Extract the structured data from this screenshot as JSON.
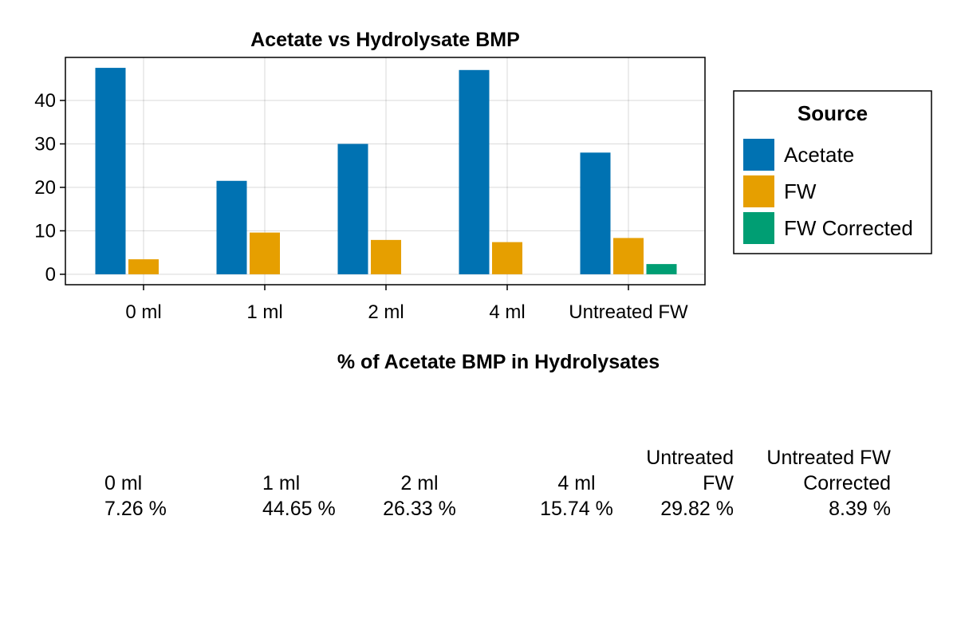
{
  "chart_data": {
    "type": "bar",
    "title": "Acetate vs Hydrolysate BMP",
    "categories": [
      "0 ml",
      "1 ml",
      "2 ml",
      "4 ml",
      "Untreated FW"
    ],
    "series": [
      {
        "name": "Acetate",
        "color": "#0072B2",
        "values": [
          47.5,
          21.5,
          30.0,
          47.0,
          28.0
        ]
      },
      {
        "name": "FW",
        "color": "#E69F00",
        "values": [
          3.45,
          9.6,
          7.9,
          7.4,
          8.35
        ]
      },
      {
        "name": "FW Corrected",
        "color": "#009E73",
        "values": [
          null,
          null,
          null,
          null,
          2.35
        ]
      }
    ],
    "yticks": [
      0,
      10,
      20,
      30,
      40
    ],
    "ylim": [
      -2.4,
      49.9
    ],
    "grid": true,
    "legend": {
      "title": "Source",
      "placement": "right"
    }
  },
  "table": {
    "title": "% of Acetate BMP in Hydrolysates",
    "columns": [
      {
        "header": "0 ml",
        "value": "7.26 %",
        "align": "left"
      },
      {
        "header": "1 ml",
        "value": "44.65 %",
        "align": "left"
      },
      {
        "header": "2 ml",
        "value": "26.33 %",
        "align": "center"
      },
      {
        "header": "4 ml",
        "value": "15.74 %",
        "align": "center"
      },
      {
        "header": "Untreated\nFW",
        "value": "29.82 %",
        "align": "right"
      },
      {
        "header": "Untreated FW\nCorrected",
        "value": "8.39 %",
        "align": "right"
      }
    ]
  }
}
